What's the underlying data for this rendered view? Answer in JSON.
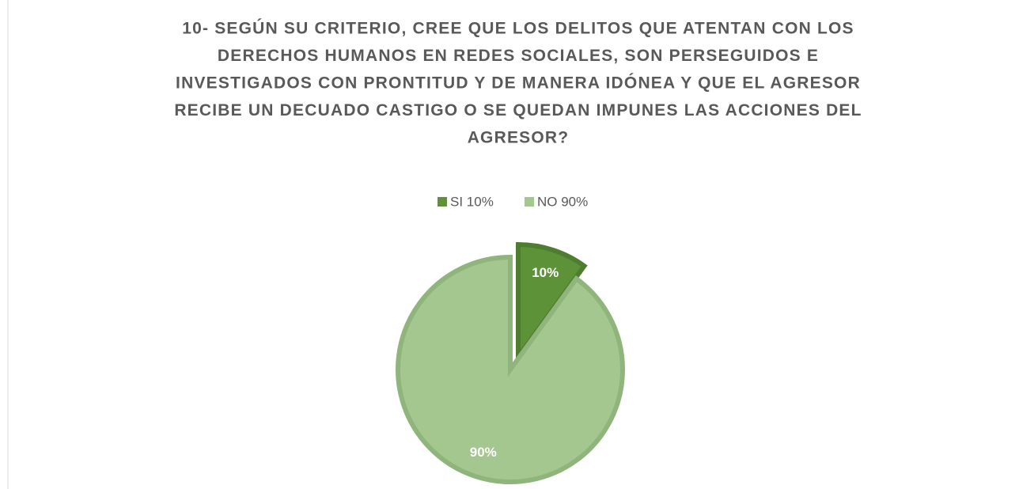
{
  "chart_data": {
    "type": "pie",
    "title": [
      "10- SEGÚN SU CRITERIO, CREE QUE LOS DELITOS QUE ATENTAN CON LOS",
      "DERECHOS HUMANOS EN REDES SOCIALES, SON PERSEGUIDOS E",
      "INVESTIGADOS CON PRONTITUD Y DE MANERA IDÓNEA Y QUE EL AGRESOR",
      "RECIBE UN DECUADO CASTIGO O SE QUEDAN IMPUNES LAS ACCIONES DEL",
      "AGRESOR?"
    ],
    "categories": [
      "SI  10%",
      "NO  90%"
    ],
    "values": [
      10,
      90
    ],
    "value_labels": [
      "10%",
      "90%"
    ],
    "colors": [
      "#5e9239",
      "#a3c78f"
    ],
    "legend": "top"
  }
}
